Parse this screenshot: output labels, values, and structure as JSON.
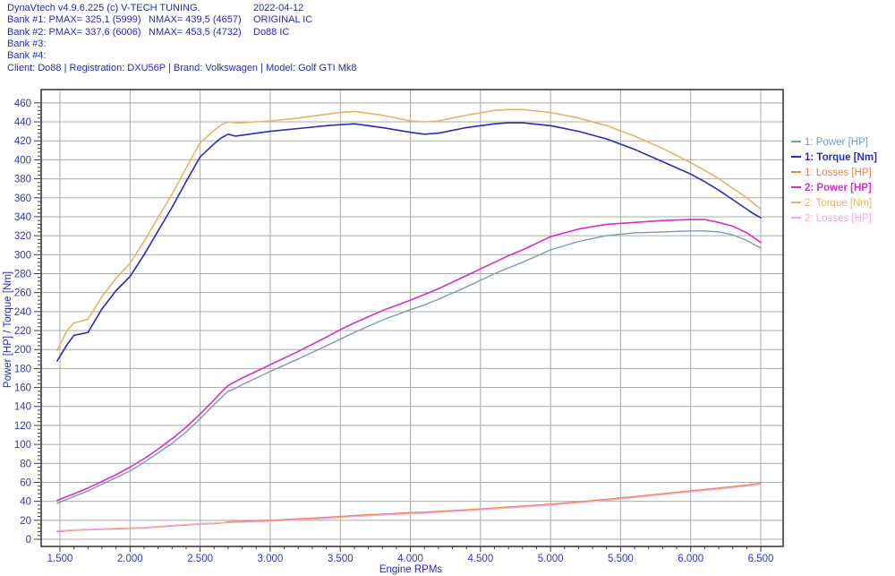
{
  "header": {
    "app_title": "DynaVtech v4.9.6.225 (c) V-TECH TUNING.",
    "date": "2022-04-12",
    "bank1_label": "Bank #1: PMAX= 325,1 (5999)",
    "bank1_nmax": "NMAX= 439,5 (4657)",
    "bank1_note": "ORIGINAL IC",
    "bank2_label": "Bank #2: PMAX= 337,6 (6006)",
    "bank2_nmax": "NMAX= 453,5 (4732)",
    "bank2_note": "Do88 IC",
    "bank3_label": "Bank #3:",
    "bank4_label": "Bank #4:",
    "client_line": "Client: Do88 | Registration: DXU56P | Brand: Volkswagen | Model: Golf GTI Mk8",
    "text_color": "#2a2ab4"
  },
  "chart_data": {
    "type": "line",
    "title": "",
    "xlabel": "Engine RPMs",
    "ylabel": "Power [HP] / Torque [Nm]",
    "x_ticks": [
      1500,
      2000,
      2500,
      3000,
      3500,
      4000,
      4500,
      5000,
      5500,
      6000,
      6500
    ],
    "x_tick_labels": [
      "1.500",
      "2.000",
      "2.500",
      "3.000",
      "3.500",
      "4.000",
      "4.500",
      "5.000",
      "5.500",
      "6.000",
      "6.500"
    ],
    "x_minor_step": 100,
    "y_ticks": [
      0,
      20,
      40,
      60,
      80,
      100,
      120,
      140,
      160,
      180,
      200,
      220,
      240,
      260,
      280,
      300,
      320,
      340,
      360,
      380,
      400,
      420,
      440,
      460
    ],
    "y_minor_step": 4,
    "xlim": [
      1366,
      6659
    ],
    "ylim": [
      -7.6,
      474.2
    ],
    "grid": true,
    "legend_position": "right",
    "colors": {
      "grid": "#ababab",
      "frame": "#3c3c3c",
      "tick_text": "#3434c6",
      "axis_title": "#2a2ab4",
      "background": "#ffffff"
    },
    "x": [
      1480,
      1550,
      1600,
      1700,
      1800,
      1900,
      2000,
      2100,
      2200,
      2300,
      2400,
      2500,
      2600,
      2650,
      2700,
      2750,
      2800,
      2900,
      3000,
      3200,
      3400,
      3500,
      3600,
      3800,
      4000,
      4100,
      4200,
      4400,
      4600,
      4700,
      4800,
      5000,
      5200,
      5400,
      5600,
      5800,
      6000,
      6100,
      6200,
      6300,
      6400,
      6450,
      6500
    ],
    "series": [
      {
        "name": "1: Power [HP]",
        "color": "#7e99b4",
        "bold": false,
        "width": 1.4,
        "values": [
          38,
          42,
          45,
          51,
          58,
          65,
          72,
          81,
          91,
          101,
          113,
          127,
          142,
          149,
          156,
          159,
          163,
          170,
          177,
          190,
          204,
          211,
          218,
          231,
          242,
          247,
          253,
          266,
          280,
          286,
          292,
          305,
          314,
          320,
          323,
          324,
          325,
          325,
          324,
          321,
          315,
          311,
          307
        ]
      },
      {
        "name": "1: Torque [Nm]",
        "color": "#2b2bb5",
        "bold": true,
        "width": 1.6,
        "values": [
          188,
          205,
          215,
          218,
          243,
          262,
          277,
          300,
          325,
          350,
          377,
          403,
          417,
          423,
          427,
          425,
          426,
          428,
          430,
          433,
          436,
          437,
          438,
          434,
          429,
          427,
          428,
          434,
          438,
          439,
          439,
          436,
          430,
          422,
          411,
          398,
          385,
          377,
          368,
          358,
          348,
          343,
          339
        ]
      },
      {
        "name": "1: Losses [HP]",
        "color": "#e8824e",
        "bold": false,
        "width": 1.4,
        "values": [
          8,
          9,
          9.5,
          10,
          10.5,
          11,
          11.5,
          12,
          13,
          14,
          15,
          16,
          16.5,
          17,
          18.5,
          18.7,
          19,
          19.5,
          20,
          21.5,
          23,
          24,
          25,
          26.5,
          28,
          28.5,
          29.5,
          31,
          33,
          34,
          35,
          37,
          39.5,
          42,
          45,
          48,
          51,
          52.5,
          54,
          55.5,
          57,
          58,
          59
        ]
      },
      {
        "name": "2: Power [HP]",
        "color": "#d62fc5",
        "bold": true,
        "width": 1.6,
        "values": [
          41,
          45,
          48,
          54,
          61,
          68,
          76,
          85,
          95,
          106,
          118,
          132,
          147,
          155,
          162,
          166,
          170,
          177,
          184,
          198,
          213,
          221,
          228,
          241,
          252,
          258,
          264,
          278,
          292,
          299,
          305,
          319,
          327,
          332,
          334,
          336,
          337,
          337,
          334,
          330,
          323,
          318,
          313
        ]
      },
      {
        "name": "2: Torque [Nm]",
        "color": "#e6b468",
        "bold": false,
        "width": 1.6,
        "values": [
          199,
          220,
          228,
          232,
          256,
          275,
          291,
          314,
          339,
          364,
          391,
          418,
          431,
          437,
          440,
          439,
          439,
          440,
          441,
          444,
          448,
          450,
          451,
          447,
          441,
          440,
          441,
          447,
          452,
          453,
          453,
          450,
          444,
          436,
          425,
          412,
          397,
          389,
          380,
          370,
          360,
          354,
          348
        ]
      },
      {
        "name": "2: Losses [HP]",
        "color": "#f7a8d8",
        "bold": false,
        "width": 1.4,
        "values": [
          9,
          9.5,
          10,
          10.5,
          11,
          11.5,
          12,
          12.5,
          13.5,
          14.5,
          15.5,
          16.5,
          17,
          17.2,
          17.5,
          17.8,
          18,
          18.5,
          19,
          20.5,
          22,
          23,
          24,
          25.5,
          27,
          27.5,
          28.5,
          30,
          32,
          33,
          34,
          36,
          38.5,
          41,
          44,
          47,
          50,
          51.5,
          53,
          54.5,
          56,
          57,
          58
        ]
      }
    ]
  }
}
